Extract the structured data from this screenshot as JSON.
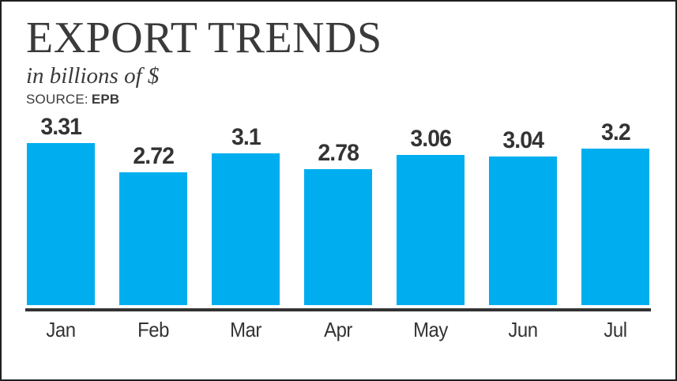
{
  "header": {
    "title": "EXPORT TRENDS",
    "subtitle": "in billions of $",
    "source_label": "SOURCE:",
    "source_value": "EPB"
  },
  "chart_data": {
    "type": "bar",
    "title": "EXPORT TRENDS",
    "subtitle": "in billions of $",
    "source": "EPB",
    "categories": [
      "Jan",
      "Feb",
      "Mar",
      "Apr",
      "May",
      "Jun",
      "Jul"
    ],
    "values": [
      3.31,
      2.72,
      3.1,
      2.78,
      3.06,
      3.04,
      3.2
    ],
    "value_labels": [
      "3.31",
      "2.72",
      "3.1",
      "2.78",
      "3.06",
      "3.04",
      "3.2"
    ],
    "xlabel": "",
    "ylabel": "in billions of $",
    "ylim": [
      0,
      3.31
    ],
    "grid": false,
    "legend": false,
    "bar_color": "#00AEEF",
    "label_color": "#333333",
    "baseline_color": "#333333"
  }
}
